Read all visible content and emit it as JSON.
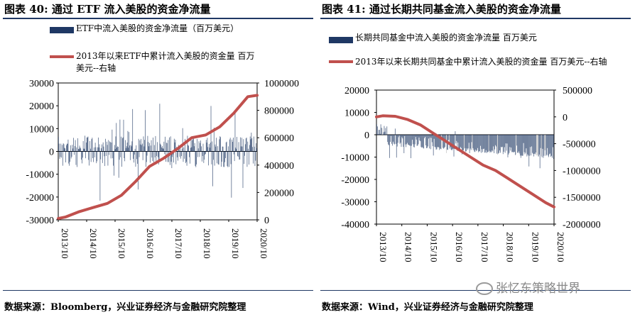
{
  "watermark": "张忆东策略世界",
  "chart_data": [
    {
      "type": "bar+line",
      "title": "图表 40:  通过 ETF 流入美股的资金净流量",
      "source": "数据来源：Bloomberg，兴业证券经济与金融研究院整理",
      "series": [
        {
          "name": "ETF中流入美股的资金净流量（百万美元）",
          "type": "bar",
          "axis": "left",
          "color": "#1f3864"
        },
        {
          "name": "2013年以来ETF中累计流入美股的资金量  百万美元--右轴",
          "type": "line",
          "axis": "right",
          "color": "#c0504d"
        }
      ],
      "y_left": {
        "min": -30000,
        "max": 30000,
        "ticks": [
          30000,
          20000,
          10000,
          0,
          -10000,
          -20000,
          -30000
        ]
      },
      "y_right": {
        "min": 0,
        "max": 1000000,
        "ticks": [
          1000000,
          800000,
          600000,
          400000,
          200000,
          0
        ]
      },
      "x_ticks": [
        "2013/10",
        "2014/10",
        "2015/10",
        "2016/10",
        "2017/10",
        "2018/10",
        "2019/10",
        "2020/10"
      ],
      "cumulative_line": [
        {
          "x": 2013.75,
          "y": 10000
        },
        {
          "x": 2014.0,
          "y": 20000
        },
        {
          "x": 2014.5,
          "y": 60000
        },
        {
          "x": 2015.0,
          "y": 90000
        },
        {
          "x": 2015.5,
          "y": 120000
        },
        {
          "x": 2016.0,
          "y": 180000
        },
        {
          "x": 2016.5,
          "y": 280000
        },
        {
          "x": 2017.0,
          "y": 390000
        },
        {
          "x": 2017.5,
          "y": 450000
        },
        {
          "x": 2018.0,
          "y": 520000
        },
        {
          "x": 2018.5,
          "y": 600000
        },
        {
          "x": 2019.0,
          "y": 620000
        },
        {
          "x": 2019.5,
          "y": 680000
        },
        {
          "x": 2020.0,
          "y": 780000
        },
        {
          "x": 2020.5,
          "y": 900000
        },
        {
          "x": 2020.83,
          "y": 910000
        }
      ]
    },
    {
      "type": "bar+line",
      "title": "图表 41:  通过长期共同基金流入美股的资金净流量",
      "source": "数据来源：Wind，兴业证券经济与金融研究院整理",
      "series": [
        {
          "name": "长期共同基金中流入美股的资金净流量  百万美元",
          "type": "bar",
          "axis": "left",
          "color": "#1f3864"
        },
        {
          "name": "2013年以来长期共同基金中累计流入美股的资金量  百万美元--右轴",
          "type": "line",
          "axis": "right",
          "color": "#c0504d"
        }
      ],
      "y_left": {
        "min": -40000,
        "max": 20000,
        "ticks": [
          20000,
          10000,
          0,
          -10000,
          -20000,
          -30000,
          -40000
        ]
      },
      "y_right": {
        "min": -2000000,
        "max": 500000,
        "ticks": [
          500000,
          0,
          -500000,
          -1000000,
          -1500000,
          -2000000
        ]
      },
      "x_ticks": [
        "2013/10",
        "2014/10",
        "2015/10",
        "2016/10",
        "2017/10",
        "2018/10",
        "2019/10",
        "2020/10"
      ],
      "cumulative_line": [
        {
          "x": 2013.75,
          "y": 0
        },
        {
          "x": 2014.0,
          "y": 20000
        },
        {
          "x": 2014.5,
          "y": 10000
        },
        {
          "x": 2015.0,
          "y": -50000
        },
        {
          "x": 2015.5,
          "y": -150000
        },
        {
          "x": 2016.0,
          "y": -300000
        },
        {
          "x": 2016.5,
          "y": -450000
        },
        {
          "x": 2017.0,
          "y": -600000
        },
        {
          "x": 2017.5,
          "y": -750000
        },
        {
          "x": 2018.0,
          "y": -900000
        },
        {
          "x": 2018.5,
          "y": -1000000
        },
        {
          "x": 2019.0,
          "y": -1150000
        },
        {
          "x": 2019.5,
          "y": -1300000
        },
        {
          "x": 2020.0,
          "y": -1450000
        },
        {
          "x": 2020.5,
          "y": -1600000
        },
        {
          "x": 2020.83,
          "y": -1680000
        }
      ]
    }
  ]
}
